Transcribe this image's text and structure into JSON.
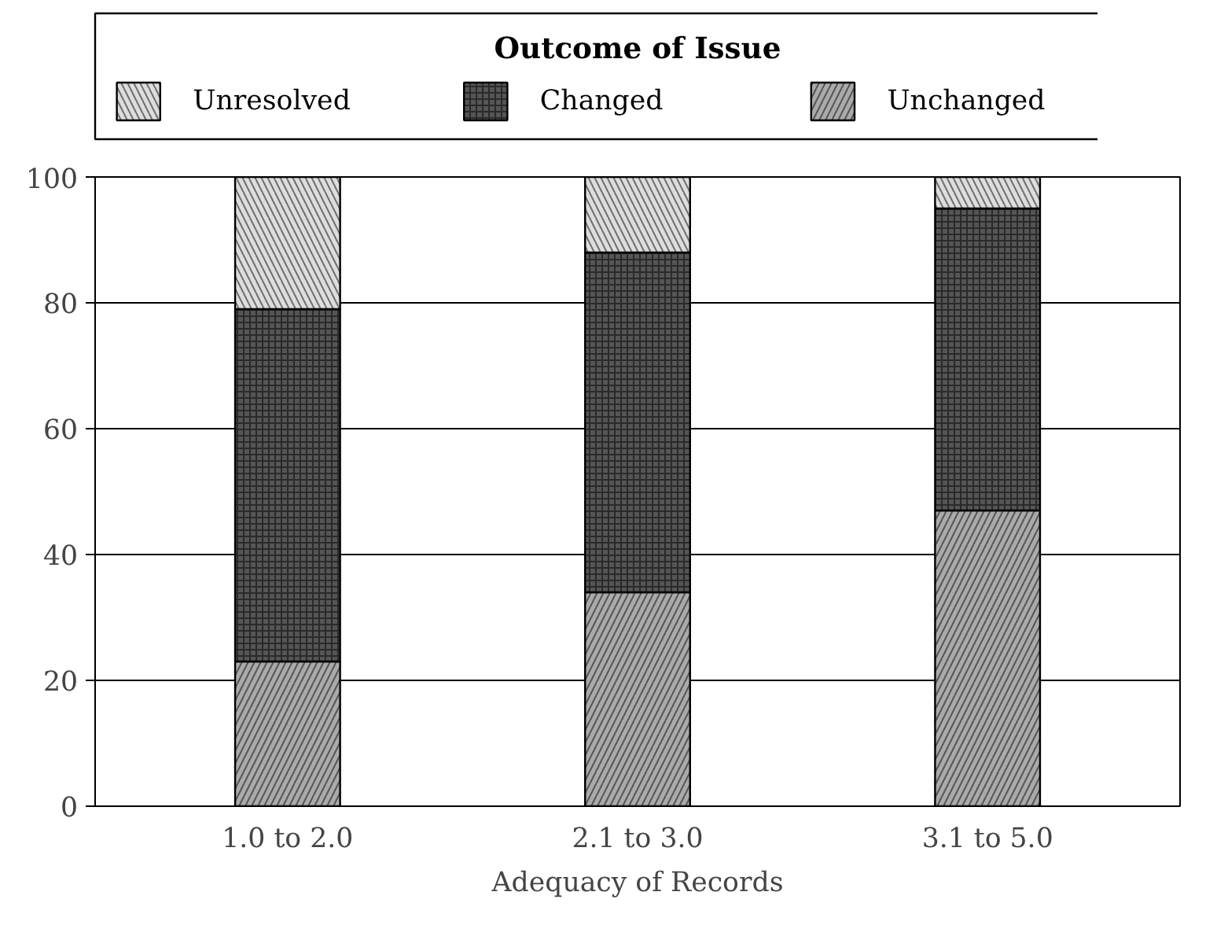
{
  "chart_data": {
    "type": "bar",
    "stacked": true,
    "xlabel": "Adequacy of Records",
    "legend_title": "Outcome of Issue",
    "categories": [
      "1.0 to 2.0",
      "2.1 to 3.0",
      "3.1 to 5.0"
    ],
    "series": [
      {
        "name": "Unchanged",
        "color": "#aaaaaa",
        "values": [
          23,
          34,
          47
        ]
      },
      {
        "name": "Changed",
        "color": "#555555",
        "values": [
          56,
          54,
          48
        ]
      },
      {
        "name": "Unresolved",
        "color": "#dddddd",
        "values": [
          21,
          12,
          5
        ]
      }
    ],
    "ylim": [
      0,
      100
    ],
    "yticks": [
      0,
      20,
      40,
      60,
      80,
      100
    ],
    "grid": "y",
    "legend": "top"
  }
}
